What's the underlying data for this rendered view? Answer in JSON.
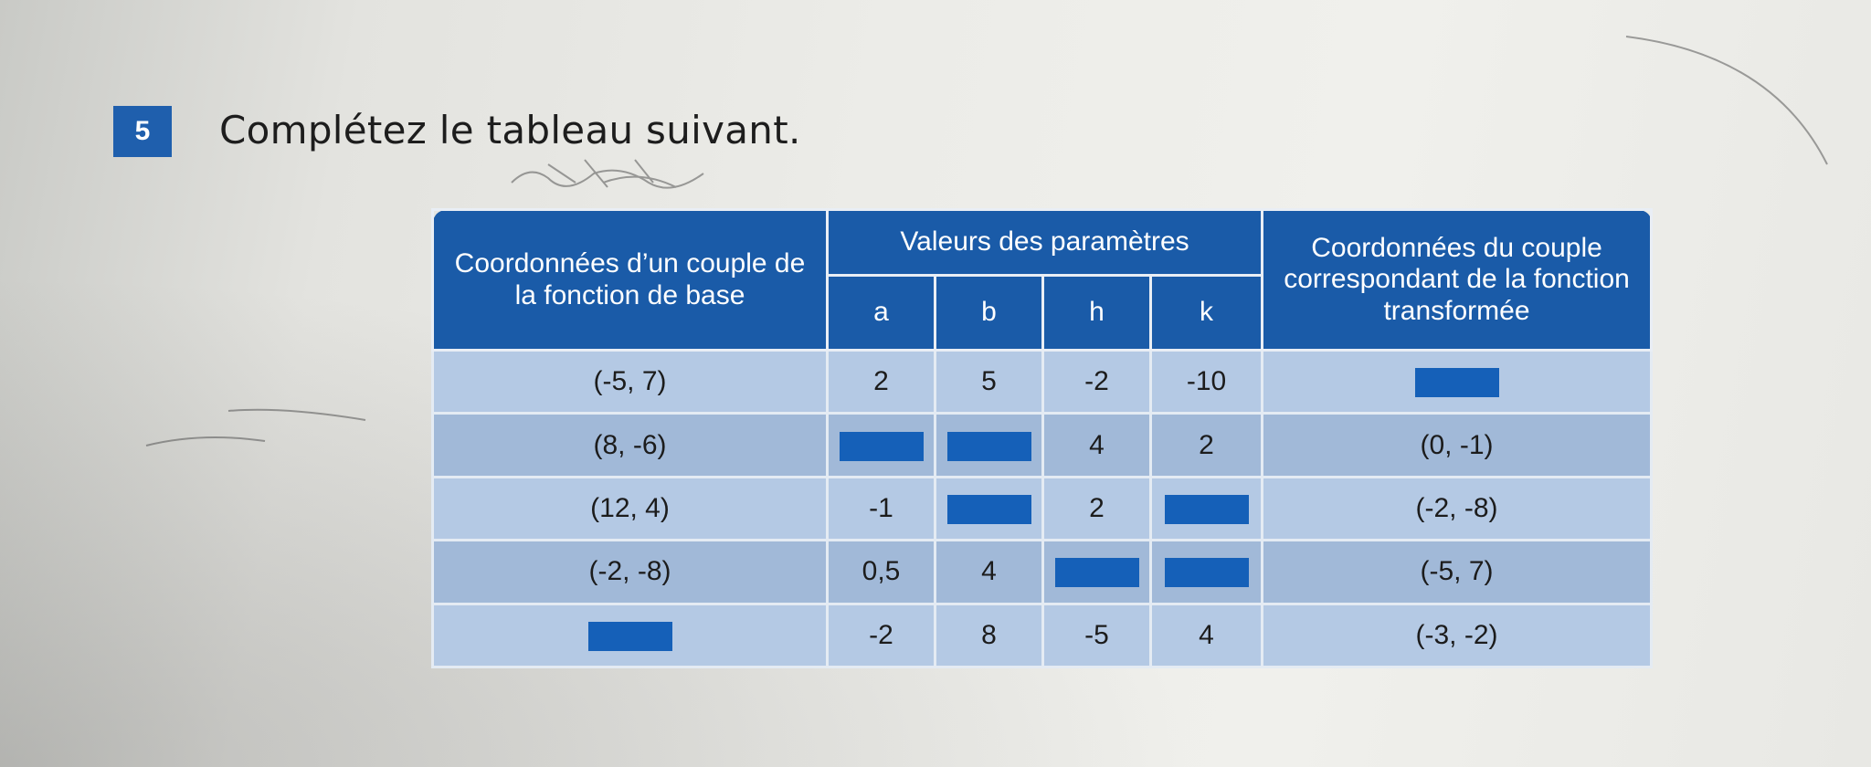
{
  "exercise": {
    "number": "5",
    "title": "Complétez le tableau suivant."
  },
  "table": {
    "headers": {
      "base": "Coordonnées d’un couple de la fonction de base",
      "params_group": "Valeurs des paramètres",
      "a": "a",
      "b": "b",
      "h": "h",
      "k": "k",
      "transformed": "Coordonnées du couple correspondant de la fonction transformée"
    },
    "rows": [
      {
        "base": "(-5, 7)",
        "a": "2",
        "b": "5",
        "h": "-2",
        "k": "-10",
        "transformed": ""
      },
      {
        "base": "(8, -6)",
        "a": "",
        "b": "",
        "h": "4",
        "k": "2",
        "transformed": "(0, -1)"
      },
      {
        "base": "(12, 4)",
        "a": "-1",
        "b": "",
        "h": "2",
        "k": "",
        "transformed": "(-2, -8)"
      },
      {
        "base": "(-2, -8)",
        "a": "0,5",
        "b": "4",
        "h": "",
        "k": "",
        "transformed": "(-5, 7)"
      },
      {
        "base": "",
        "a": "-2",
        "b": "8",
        "h": "-5",
        "k": "4",
        "transformed": "(-3, -2)"
      }
    ]
  },
  "colors": {
    "header_blue": "#1a5ba8",
    "blank_fill": "#1560b8",
    "row_light": "#b4c9e4",
    "row_dark": "#a1b9d8"
  }
}
